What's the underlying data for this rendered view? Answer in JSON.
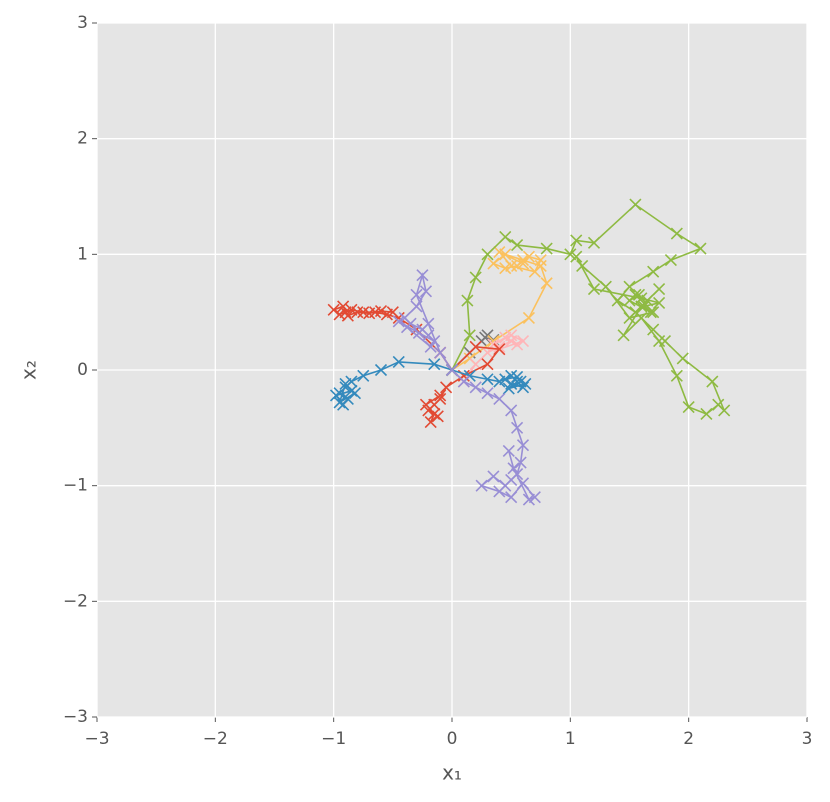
{
  "chart_data": {
    "type": "line",
    "x_label": "x₁",
    "y_label": "x₂",
    "xlim": [
      -3,
      3
    ],
    "ylim": [
      -3,
      3
    ],
    "xticks": [
      {
        "value": -3,
        "label": "−3"
      },
      {
        "value": -2,
        "label": "−2"
      },
      {
        "value": -1,
        "label": "−1"
      },
      0,
      1,
      2,
      3
    ],
    "yticks": [
      {
        "value": -3,
        "label": "−3"
      },
      {
        "value": -2,
        "label": "−2"
      },
      {
        "value": -1,
        "label": "−1"
      },
      0,
      1,
      2,
      3
    ],
    "grid": true,
    "marker": "x",
    "series": [
      {
        "color": "#E24A33",
        "x": [
          0,
          -0.1,
          -0.3,
          -0.45,
          -0.55,
          -0.65,
          -0.75,
          -0.85,
          -0.9,
          -0.95,
          -1.0,
          -0.92,
          -0.88,
          -0.8,
          -0.7,
          -0.6,
          -0.5
        ],
        "values": [
          0,
          0.15,
          0.35,
          0.45,
          0.48,
          0.5,
          0.5,
          0.52,
          0.5,
          0.48,
          0.52,
          0.55,
          0.47,
          0.5,
          0.49,
          0.51,
          0.5
        ]
      },
      {
        "color": "#348ABD",
        "x": [
          0,
          -0.15,
          -0.45,
          -0.6,
          -0.75,
          -0.85,
          -0.9,
          -0.95,
          -0.88,
          -0.92,
          -0.98,
          -0.85,
          -0.9,
          -0.95,
          -0.82
        ],
        "values": [
          0,
          0.05,
          0.07,
          0.0,
          -0.05,
          -0.1,
          -0.15,
          -0.2,
          -0.25,
          -0.3,
          -0.22,
          -0.18,
          -0.12,
          -0.28,
          -0.2
        ]
      },
      {
        "color": "#988ED5",
        "x": [
          0,
          -0.1,
          -0.2,
          -0.3,
          -0.25,
          -0.22,
          -0.3,
          -0.4,
          -0.35,
          -0.25,
          -0.2,
          -0.15,
          -0.28,
          -0.45,
          -0.38,
          -0.18
        ],
        "values": [
          0,
          0.15,
          0.4,
          0.65,
          0.82,
          0.68,
          0.55,
          0.45,
          0.4,
          0.35,
          0.3,
          0.25,
          0.32,
          0.42,
          0.37,
          0.2
        ]
      },
      {
        "color": "#777777",
        "x": [
          0,
          0.15,
          0.25,
          0.3,
          0.28,
          0.35
        ],
        "values": [
          0,
          0.15,
          0.25,
          0.3,
          0.28,
          0.26
        ]
      },
      {
        "color": "#FBC15E",
        "x": [
          0,
          0.15,
          0.35,
          0.65,
          0.8,
          0.75,
          0.6,
          0.45,
          0.35,
          0.45,
          0.55,
          0.65,
          0.75,
          0.7,
          0.5,
          0.4,
          0.6
        ],
        "values": [
          0,
          0.1,
          0.25,
          0.45,
          0.75,
          0.9,
          0.95,
          1.0,
          0.92,
          0.88,
          0.9,
          0.98,
          0.95,
          0.85,
          0.9,
          1.02,
          0.92
        ]
      },
      {
        "color": "#8EBA42",
        "x": [
          0,
          0.15,
          0.13,
          0.2,
          0.3,
          0.45,
          0.55,
          0.8,
          1.0,
          1.05,
          1.2,
          1.55,
          1.9,
          2.1,
          1.85,
          1.7,
          1.5,
          1.4,
          1.55,
          1.7,
          1.8,
          1.95,
          2.2,
          2.3,
          2.25,
          2.15,
          2.0,
          1.9,
          1.75,
          1.6,
          1.45,
          1.6,
          1.75,
          1.65,
          1.55,
          1.7,
          1.5,
          1.3,
          1.1,
          1.05,
          1.2,
          1.6,
          1.75,
          1.62,
          1.68,
          1.5,
          1.58
        ],
        "values": [
          0,
          0.3,
          0.6,
          0.8,
          1.0,
          1.15,
          1.08,
          1.05,
          1.0,
          1.12,
          1.1,
          1.43,
          1.18,
          1.05,
          0.95,
          0.85,
          0.72,
          0.6,
          0.5,
          0.35,
          0.25,
          0.1,
          -0.1,
          -0.35,
          -0.3,
          -0.38,
          -0.32,
          -0.05,
          0.25,
          0.45,
          0.3,
          0.55,
          0.7,
          0.6,
          0.65,
          0.5,
          0.45,
          0.72,
          0.9,
          0.98,
          0.7,
          0.62,
          0.58,
          0.55,
          0.5,
          0.6,
          0.65
        ]
      },
      {
        "color": "#FFB5B8",
        "x": [
          0,
          0.1,
          0.2,
          0.3,
          0.4,
          0.5,
          0.55,
          0.45,
          0.35,
          0.5,
          0.6,
          0.4
        ],
        "values": [
          0,
          -0.1,
          0.05,
          0.15,
          0.2,
          0.25,
          0.22,
          0.28,
          0.22,
          0.3,
          0.25,
          0.18
        ]
      },
      {
        "color": "#E24A33",
        "x": [
          0,
          0.2,
          0.4,
          0.3,
          0.1,
          -0.05,
          -0.1,
          -0.15,
          -0.2,
          -0.12,
          -0.18,
          -0.15,
          -0.22,
          -0.1
        ],
        "values": [
          0,
          0.2,
          0.18,
          0.05,
          -0.05,
          -0.15,
          -0.25,
          -0.3,
          -0.35,
          -0.4,
          -0.45,
          -0.38,
          -0.3,
          -0.22
        ]
      },
      {
        "color": "#348ABD",
        "x": [
          0,
          0.15,
          0.3,
          0.4,
          0.5,
          0.55,
          0.6,
          0.5,
          0.45,
          0.55,
          0.62,
          0.48,
          0.58
        ],
        "values": [
          0,
          -0.05,
          -0.08,
          -0.1,
          -0.05,
          -0.1,
          -0.15,
          -0.12,
          -0.08,
          -0.06,
          -0.12,
          -0.16,
          -0.1
        ]
      },
      {
        "color": "#988ED5",
        "x": [
          0,
          0.1,
          0.2,
          0.3,
          0.4,
          0.5,
          0.55,
          0.6,
          0.58,
          0.55,
          0.5,
          0.45,
          0.35,
          0.25,
          0.4,
          0.5,
          0.6,
          0.7,
          0.65,
          0.52,
          0.48
        ],
        "values": [
          0,
          -0.1,
          -0.15,
          -0.2,
          -0.25,
          -0.35,
          -0.5,
          -0.65,
          -0.8,
          -0.9,
          -0.95,
          -1.0,
          -0.92,
          -1.0,
          -1.05,
          -1.1,
          -0.98,
          -1.1,
          -1.12,
          -0.85,
          -0.7
        ]
      }
    ]
  }
}
